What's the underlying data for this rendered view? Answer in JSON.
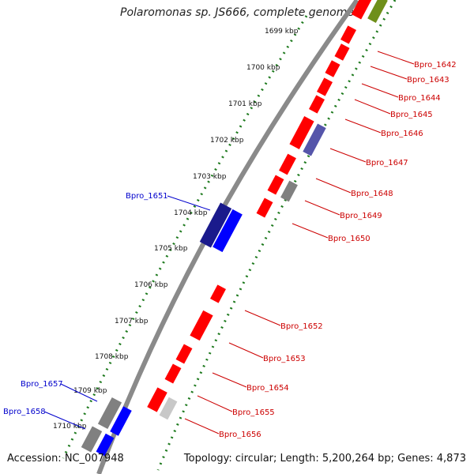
{
  "title": "Polaromonas sp. JS666, complete genome",
  "accession_text": "Accession: NC_007948",
  "topology_text": "Topology: circular; Length: 5,200,264 bp; Genes: 4,873",
  "colors": {
    "backbone": "#8a8a8a",
    "ticks": "#1e7a1e",
    "gene_forward_highlight": "#0000ff",
    "gene_forward_dark": "#1a1a8c",
    "gene_reverse": "#ff0000",
    "gene_grey": "#808080",
    "gene_olive": "#6f8f1a",
    "gene_slate": "#5555aa",
    "label_reverse": "#cc0000",
    "label_forward": "#0000cc"
  },
  "kbp_ticks": [
    "1699 kbp",
    "1700 kbp",
    "1701 kbp",
    "1702 kbp",
    "1703 kbp",
    "1704 kbp",
    "1705 kbp",
    "1706 kbp",
    "1707 kbp",
    "1708 kbp",
    "1709 kbp",
    "1710 kbp"
  ],
  "gene_labels_right": [
    "Bpro_1642",
    "Bpro_1643",
    "Bpro_1644",
    "Bpro_1645",
    "Bpro_1646",
    "Bpro_1647",
    "Bpro_1648",
    "Bpro_1649",
    "Bpro_1650",
    "Bpro_1652",
    "Bpro_1653",
    "Bpro_1654",
    "Bpro_1655",
    "Bpro_1656"
  ],
  "gene_labels_left": [
    "Bpro_1651",
    "Bpro_1657",
    "Bpro_1658"
  ]
}
